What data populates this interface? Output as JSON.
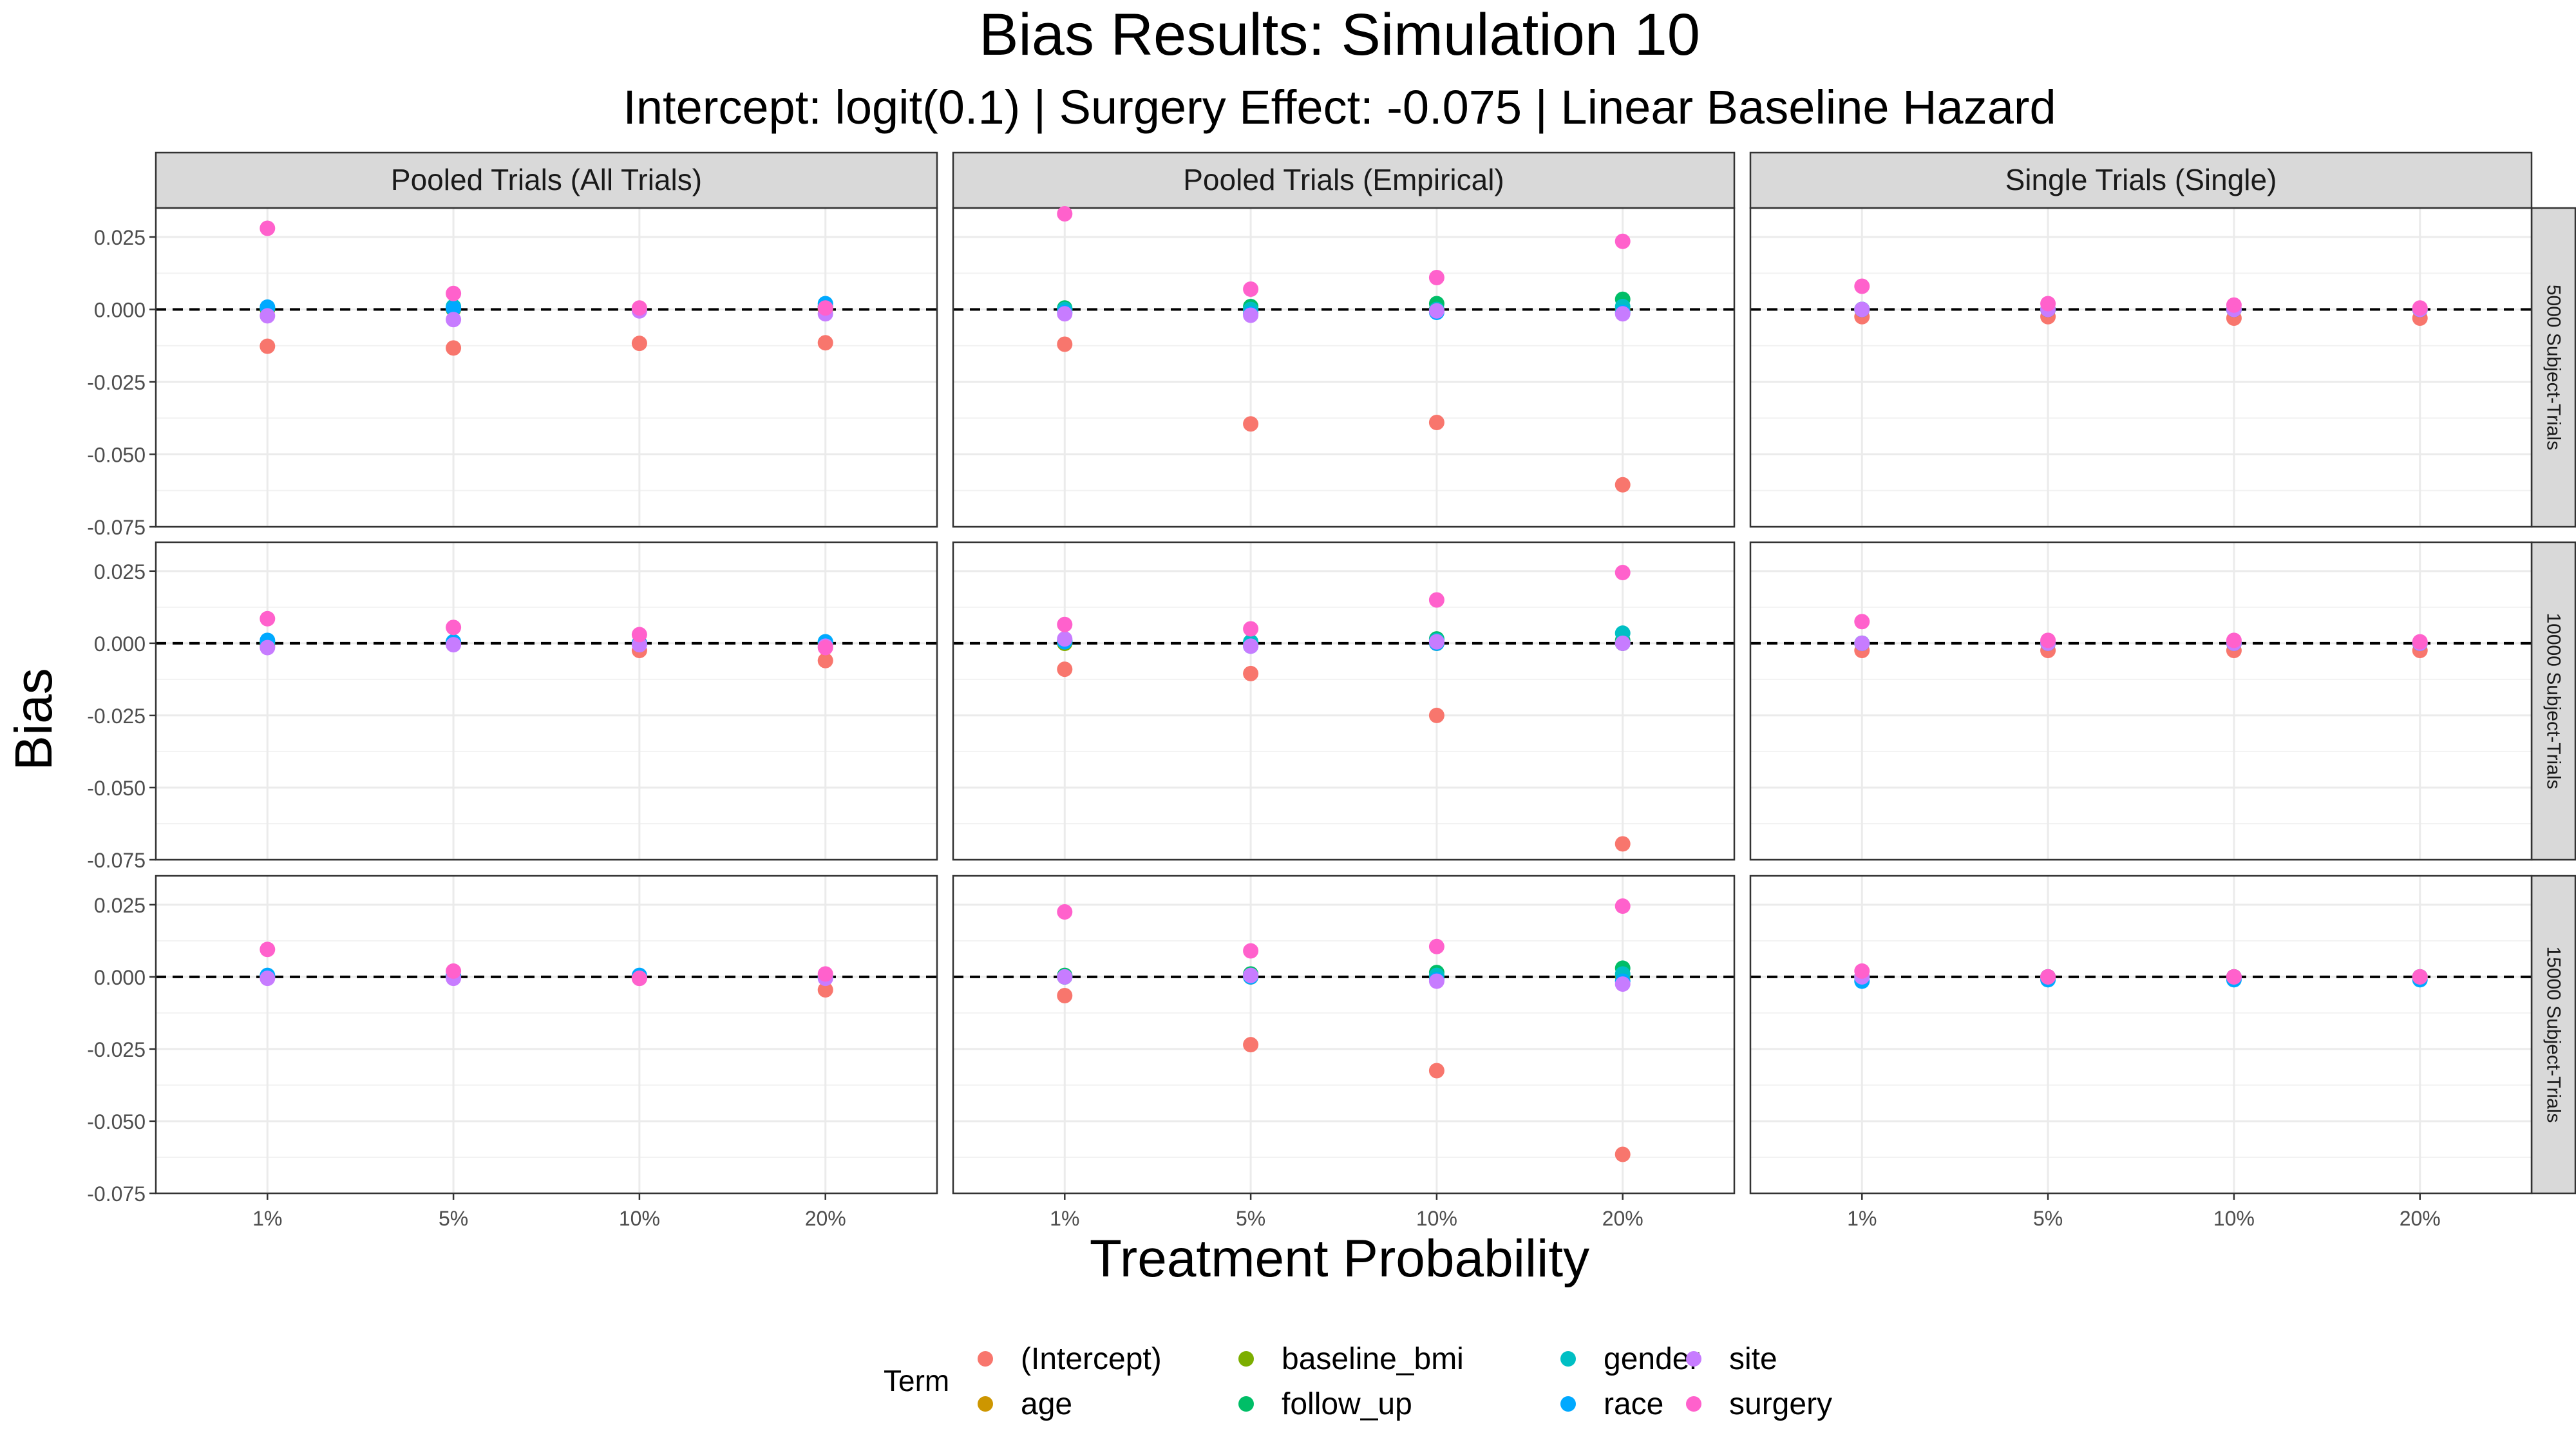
{
  "chart_data": {
    "type": "scatter",
    "title": "Bias Results: Simulation 10",
    "subtitle": "Intercept: logit(0.1) | Surgery Effect: -0.075 | Linear Baseline Hazard",
    "xlabel": "Treatment Probability",
    "ylabel": "Bias",
    "x_categories": [
      "1%",
      "5%",
      "10%",
      "20%"
    ],
    "ylim": [
      -0.075,
      0.035
    ],
    "y_ticks": [
      "0.025",
      "0.000",
      "-0.025",
      "-0.050",
      "-0.075"
    ],
    "y_tick_values": [
      0.025,
      0.0,
      -0.025,
      -0.05,
      -0.075
    ],
    "reference_line": 0,
    "grid": true,
    "legend_title": "Term",
    "legend_position": "bottom",
    "terms": [
      "(Intercept)",
      "age",
      "baseline_bmi",
      "follow_up",
      "gender",
      "race",
      "site",
      "surgery"
    ],
    "term_colors": {
      "(Intercept)": "#F8766D",
      "age": "#CD9600",
      "baseline_bmi": "#7CAE00",
      "follow_up": "#00BE67",
      "gender": "#00BFC4",
      "race": "#00A9FF",
      "site": "#C77CFF",
      "surgery": "#FF61CC"
    },
    "columns": [
      "Pooled Trials (All Trials)",
      "Pooled Trials (Empirical)",
      "Single Trials (Single)"
    ],
    "rows": [
      "5000 Subject-Trials",
      "10000 Subject-Trials",
      "15000 Subject-Trials"
    ],
    "panels": [
      {
        "row": 0,
        "col": 0,
        "series": {
          "(Intercept)": [
            -0.0127,
            -0.0133,
            -0.0117,
            -0.0115
          ],
          "age": [
            0.0,
            0.0,
            0.0,
            0.0
          ],
          "baseline_bmi": [
            0.0,
            0.0,
            0.0,
            0.0
          ],
          "follow_up": [
            0.0005,
            0.0005,
            0.0,
            0.001
          ],
          "gender": [
            0.0005,
            0.001,
            0.0,
            0.001
          ],
          "race": [
            0.0008,
            0.0003,
            -0.0003,
            0.002
          ],
          "site": [
            -0.0022,
            -0.0035,
            -0.0005,
            -0.0015
          ],
          "surgery": [
            0.028,
            0.0055,
            0.0005,
            0.0005
          ]
        }
      },
      {
        "row": 0,
        "col": 1,
        "series": {
          "(Intercept)": [
            -0.012,
            -0.0395,
            -0.039,
            -0.0605
          ],
          "age": [
            0.0,
            0.0,
            0.0,
            0.0
          ],
          "baseline_bmi": [
            0.0,
            0.0,
            0.0,
            0.0
          ],
          "follow_up": [
            0.0005,
            0.001,
            0.002,
            0.0035
          ],
          "gender": [
            0.0,
            0.0,
            0.0,
            0.001
          ],
          "race": [
            -0.001,
            -0.0015,
            -0.001,
            -0.001
          ],
          "site": [
            -0.0015,
            -0.002,
            -0.0005,
            -0.0015
          ],
          "surgery": [
            0.033,
            0.007,
            0.011,
            0.0235
          ]
        }
      },
      {
        "row": 0,
        "col": 2,
        "series": {
          "(Intercept)": [
            -0.0025,
            -0.0025,
            -0.003,
            -0.003
          ],
          "age": [
            0.0,
            0.0,
            0.0,
            0.0
          ],
          "baseline_bmi": [
            0.0,
            0.0,
            0.0,
            0.0
          ],
          "follow_up": [
            0.0,
            0.0,
            0.0,
            0.0
          ],
          "gender": [
            0.0,
            0.0,
            0.0,
            0.0
          ],
          "race": [
            0.0,
            0.0,
            0.0,
            0.0
          ],
          "site": [
            0.0,
            0.0,
            0.0,
            0.0
          ],
          "surgery": [
            0.008,
            0.002,
            0.0015,
            0.0005
          ]
        }
      },
      {
        "row": 1,
        "col": 0,
        "series": {
          "(Intercept)": [
            -0.001,
            0.0,
            -0.0025,
            -0.006
          ],
          "age": [
            0.0,
            0.0,
            0.0,
            0.0
          ],
          "baseline_bmi": [
            0.0,
            0.0,
            0.0,
            0.0
          ],
          "follow_up": [
            0.0,
            0.0,
            0.0,
            0.0
          ],
          "gender": [
            0.0005,
            0.0005,
            0.0,
            0.0005
          ],
          "race": [
            0.001,
            0.0005,
            0.0,
            0.0005
          ],
          "site": [
            -0.0015,
            -0.0005,
            -0.0005,
            -0.001
          ],
          "surgery": [
            0.0085,
            0.0055,
            0.003,
            -0.0015
          ]
        }
      },
      {
        "row": 1,
        "col": 1,
        "series": {
          "(Intercept)": [
            -0.009,
            -0.0105,
            -0.025,
            -0.0695
          ],
          "age": [
            0.0,
            0.0,
            0.0,
            0.0
          ],
          "baseline_bmi": [
            0.0,
            0.0,
            0.0,
            0.0
          ],
          "follow_up": [
            0.0005,
            0.0,
            0.0015,
            0.001
          ],
          "gender": [
            0.001,
            0.0005,
            0.001,
            0.0035
          ],
          "race": [
            0.0005,
            -0.001,
            0.0,
            0.0
          ],
          "site": [
            0.0015,
            -0.001,
            0.0005,
            0.0
          ],
          "surgery": [
            0.0065,
            0.005,
            0.015,
            0.0245
          ]
        }
      },
      {
        "row": 1,
        "col": 2,
        "series": {
          "(Intercept)": [
            -0.0025,
            -0.0025,
            -0.0025,
            -0.0025
          ],
          "age": [
            0.0,
            0.0,
            0.0,
            0.0
          ],
          "baseline_bmi": [
            0.0,
            0.0,
            0.0,
            0.0
          ],
          "follow_up": [
            0.0,
            0.0,
            0.0,
            0.0
          ],
          "gender": [
            0.0,
            0.0,
            0.0,
            0.0
          ],
          "race": [
            0.0,
            0.0,
            0.0,
            0.0
          ],
          "site": [
            0.0,
            0.0,
            0.0,
            0.0
          ],
          "surgery": [
            0.0075,
            0.001,
            0.001,
            0.0005
          ]
        }
      },
      {
        "row": 2,
        "col": 0,
        "series": {
          "(Intercept)": [
            0.0,
            0.0,
            -0.0005,
            -0.0045
          ],
          "age": [
            0.0,
            0.0,
            0.0,
            0.0
          ],
          "baseline_bmi": [
            0.0,
            0.0,
            0.0,
            0.0
          ],
          "follow_up": [
            0.0,
            0.0,
            0.0,
            0.0
          ],
          "gender": [
            0.0,
            0.0,
            0.0,
            0.0
          ],
          "race": [
            0.0005,
            0.0005,
            0.0005,
            0.0
          ],
          "site": [
            -0.0005,
            -0.0005,
            -0.0005,
            -0.0005
          ],
          "surgery": [
            0.0095,
            0.002,
            -0.0005,
            0.001
          ]
        }
      },
      {
        "row": 2,
        "col": 1,
        "series": {
          "(Intercept)": [
            -0.0065,
            -0.0235,
            -0.0325,
            -0.0615
          ],
          "age": [
            0.0,
            0.0,
            0.0,
            0.0
          ],
          "baseline_bmi": [
            0.0,
            0.0,
            0.0,
            0.0
          ],
          "follow_up": [
            0.0005,
            0.001,
            0.0015,
            0.003
          ],
          "gender": [
            0.0,
            0.0005,
            0.0005,
            0.001
          ],
          "race": [
            0.0,
            0.0,
            -0.001,
            -0.0015
          ],
          "site": [
            0.0,
            0.0005,
            -0.0015,
            -0.0025
          ],
          "surgery": [
            0.0225,
            0.009,
            0.0105,
            0.0245
          ]
        }
      },
      {
        "row": 2,
        "col": 2,
        "series": {
          "(Intercept)": [
            0.0,
            0.0,
            0.0,
            0.0
          ],
          "age": [
            0.0,
            0.0,
            0.0,
            0.0
          ],
          "baseline_bmi": [
            0.0,
            0.0,
            0.0,
            0.0
          ],
          "follow_up": [
            0.0,
            0.0,
            0.0,
            0.0
          ],
          "gender": [
            0.0,
            0.0,
            0.0,
            0.0
          ],
          "race": [
            -0.0015,
            -0.001,
            -0.001,
            -0.001
          ],
          "site": [
            0.0,
            0.0,
            0.0,
            0.0
          ],
          "surgery": [
            0.002,
            0.0,
            0.0,
            0.0
          ]
        }
      }
    ]
  }
}
